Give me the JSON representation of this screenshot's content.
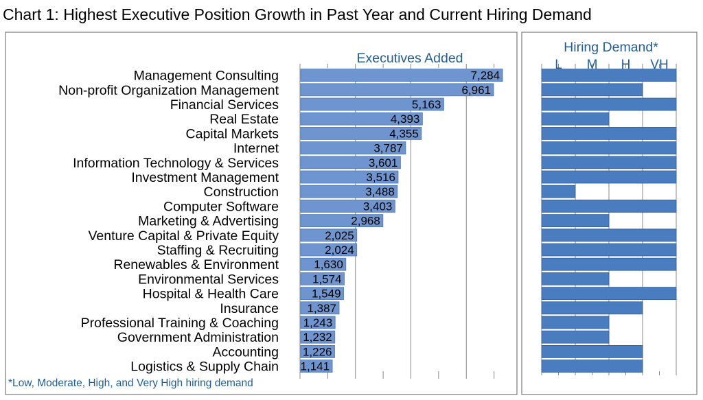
{
  "title": "Chart 1: Highest Executive Position Growth in Past Year and Current Hiring Demand",
  "footnote": "*Low, Moderate, High, and Very High hiring demand",
  "colors": {
    "bar": "#6e95cf",
    "bar_edge": "#4a79b8",
    "demand_bar": "#4a7cc0",
    "demand_edge": "#2f5d9a",
    "label_blue": "#1f5c99",
    "axis": "#888888",
    "frame": "#7a7a7a"
  },
  "chart_data": [
    {
      "type": "bar",
      "orientation": "horizontal",
      "title": "Executives Added",
      "categories": [
        "Management Consulting",
        "Non-profit Organization Management",
        "Financial Services",
        "Real Estate",
        "Capital Markets",
        "Internet",
        "Information Technology & Services",
        "Investment Management",
        "Construction",
        "Computer Software",
        "Marketing & Advertising",
        "Venture Capital & Private Equity",
        "Staffing & Recruiting",
        "Renewables & Environment",
        "Environmental Services",
        "Hospital & Health Care",
        "Insurance",
        "Professional Training & Coaching",
        "Government Administration",
        "Accounting",
        "Logistics & Supply Chain"
      ],
      "values": [
        7284,
        6961,
        5163,
        4393,
        4355,
        3787,
        3601,
        3516,
        3488,
        3403,
        2968,
        2025,
        2024,
        1630,
        1574,
        1549,
        1387,
        1243,
        1232,
        1226,
        1141
      ],
      "value_labels": [
        "7,284",
        "6,961",
        "5,163",
        "4,393",
        "4,355",
        "3,787",
        "3,601",
        "3,516",
        "3,488",
        "3,403",
        "2,968",
        "2,025",
        "2,024",
        "1,630",
        "1,574",
        "1,549",
        "1,387",
        "1,243",
        "1,232",
        "1,226",
        "1,141"
      ],
      "xlim": [
        0,
        8000
      ],
      "grid": true
    },
    {
      "type": "bar",
      "orientation": "horizontal",
      "title": "Hiring Demand*",
      "levels": [
        "L",
        "M",
        "H",
        "VH"
      ],
      "values": [
        4,
        3,
        4,
        2,
        4,
        4,
        4,
        4,
        1,
        4,
        2,
        4,
        4,
        4,
        2,
        4,
        3,
        2,
        2,
        3,
        3
      ],
      "xlim": [
        0,
        4
      ],
      "grid": true
    }
  ]
}
